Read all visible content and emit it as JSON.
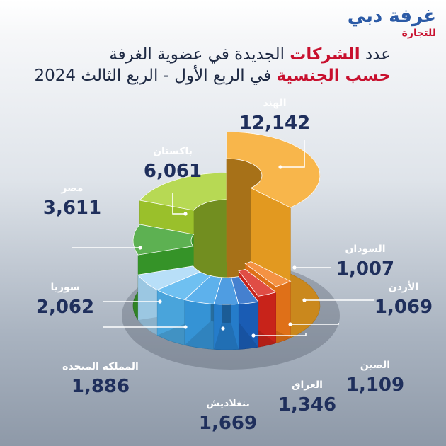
{
  "logo": {
    "main": "غرفة دبي",
    "sub": "للتجارة"
  },
  "title": {
    "line1_pre": "عدد ",
    "line1_highlight": "الشركات",
    "line1_post": " الجديدة في عضوية الغرفة",
    "line2_highlight": "حسب الجنسية",
    "line2_post": " في الربع الأول - الربع الثالث ",
    "year": "2024"
  },
  "colors": {
    "india": "#f6a623",
    "sudan": "#f27a1a",
    "jordan": "#d9261c",
    "china": "#1c64c4",
    "iraq": "#2887dc",
    "bangladesh": "#3aa0e8",
    "uk": "#4fb2ee",
    "syria": "#a9d8f6",
    "egypt": "#3aa02c",
    "pakistan": "#a7d12f"
  },
  "chart_data": {
    "type": "pie",
    "title": "عدد الشركات الجديدة في عضوية الغرفة حسب الجنسية في الربع الأول - الربع الثالث 2024",
    "categories": [
      "الهند",
      "السودان",
      "الأردن",
      "الصين",
      "العراق",
      "بنغلاديش",
      "المملكة المتحدة",
      "سوريا",
      "مصر",
      "باكستان"
    ],
    "values": [
      12142,
      1007,
      1069,
      1109,
      1346,
      1669,
      1886,
      2062,
      3611,
      6061
    ],
    "value_labels": [
      "12,142",
      "1,007",
      "1,069",
      "1,109",
      "1,346",
      "1,669",
      "1,886",
      "2,062",
      "3,611",
      "6,061"
    ],
    "style": "3d-donut"
  }
}
